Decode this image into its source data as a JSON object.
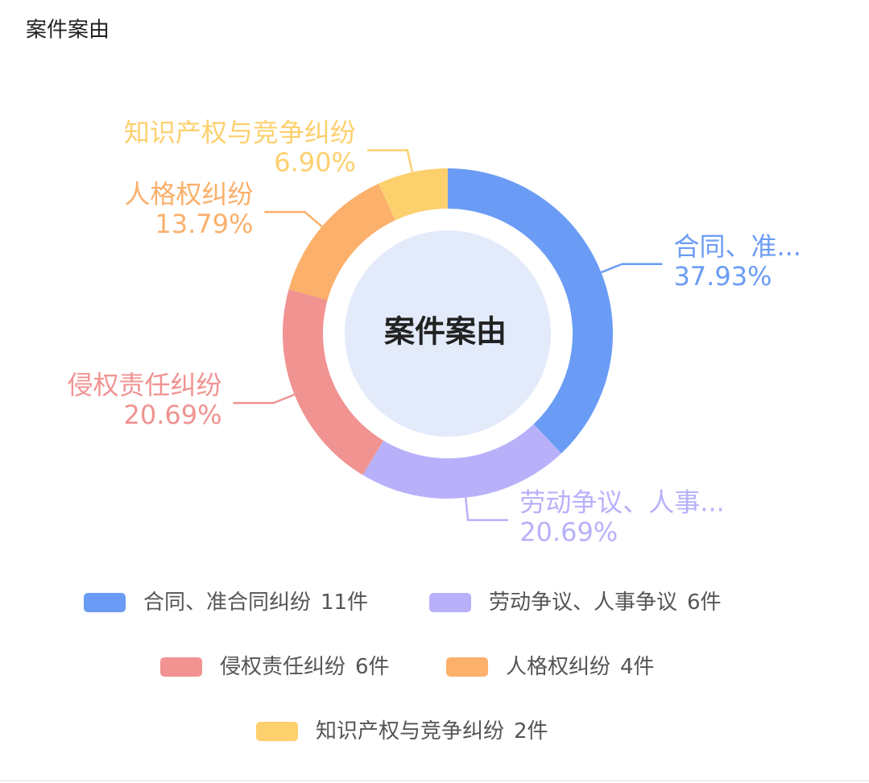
{
  "title": "案件案由",
  "chart_data": {
    "type": "donut",
    "center_label": "案件案由",
    "categories": [
      "合同、准合同纠纷",
      "劳动争议、人事争议",
      "侵权责任纠纷",
      "人格权纠纷",
      "知识产权与竞争纠纷"
    ],
    "slice_labels": [
      "合同、准...",
      "劳动争议、人事...",
      "侵权责任纠纷",
      "人格权纠纷",
      "知识产权与竞争纠纷"
    ],
    "percent_labels": [
      "37.93%",
      "20.69%",
      "20.69%",
      "13.79%",
      "6.90%"
    ],
    "values": [
      11,
      6,
      6,
      4,
      2
    ],
    "value_labels": [
      "11件",
      "6件",
      "6件",
      "4件",
      "2件"
    ],
    "colors": [
      "#6b9cf5",
      "#b8b1fa",
      "#f09391",
      "#fbb06b",
      "#fdd06e"
    ]
  }
}
